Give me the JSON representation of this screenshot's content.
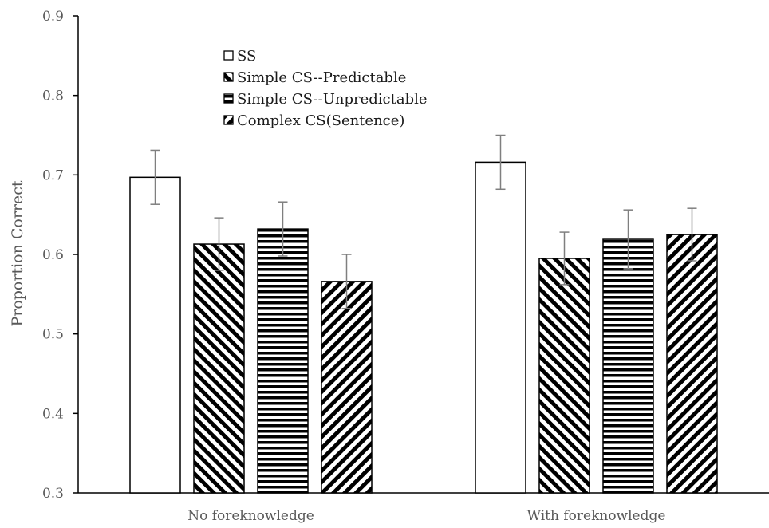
{
  "chart_data": {
    "type": "bar",
    "title": "",
    "xlabel": "",
    "ylabel": "Proportion Correct",
    "ylim": [
      0.3,
      0.9
    ],
    "yticks": [
      "0.3",
      "0.4",
      "0.5",
      "0.6",
      "0.7",
      "0.8",
      "0.9"
    ],
    "categories": [
      "No foreknowledge",
      "With foreknowledge"
    ],
    "grid": false,
    "legend_position": "top-left inside plot",
    "series": [
      {
        "name": "SS",
        "pattern": "none",
        "values": [
          0.697,
          0.716
        ],
        "errors": [
          0.034,
          0.034
        ]
      },
      {
        "name": "Simple CS--Predictable",
        "pattern": "diagonal-down",
        "values": [
          0.613,
          0.595
        ],
        "errors": [
          0.033,
          0.033
        ]
      },
      {
        "name": "Simple CS--Unpredictable",
        "pattern": "horizontal",
        "values": [
          0.632,
          0.619
        ],
        "errors": [
          0.034,
          0.037
        ]
      },
      {
        "name": "Complex CS(Sentence)",
        "pattern": "diagonal-up",
        "values": [
          0.566,
          0.625
        ],
        "errors": [
          0.034,
          0.033
        ]
      }
    ],
    "colors": {
      "bar_stroke": "#000000",
      "bar_fill": "#ffffff",
      "hatch": "#000000",
      "error_bar": "#7f7f7f",
      "axis": "#000000",
      "text": "#595959"
    }
  }
}
